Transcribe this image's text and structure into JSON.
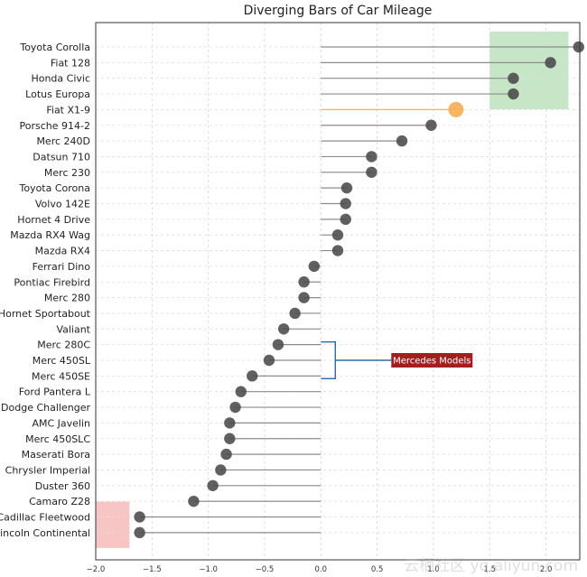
{
  "watermark": "云栖社区 yq.aliyun.com",
  "chart_data": {
    "type": "lollipop",
    "title": "Diverging Bars of Car Mileage",
    "xlim": [
      -2.0,
      2.3
    ],
    "xticks": [
      -2.0,
      -1.5,
      -1.0,
      -0.5,
      0.0,
      0.5,
      1.0,
      1.5,
      2.0
    ],
    "xtick_labels": [
      "−2.0",
      "−1.5",
      "−1.0",
      "−0.5",
      "0.0",
      "0.5",
      "1.0",
      "1.5",
      "2.0"
    ],
    "grid": true,
    "categories": [
      "Toyota Corolla",
      "Fiat 128",
      "Honda Civic",
      "Lotus Europa",
      "Fiat X1-9",
      "Porsche 914-2",
      "Merc 240D",
      "Datsun 710",
      "Merc 230",
      "Toyota Corona",
      "Volvo 142E",
      "Hornet 4 Drive",
      "Mazda RX4 Wag",
      "Mazda RX4",
      "Ferrari Dino",
      "Pontiac Firebird",
      "Merc 280",
      "Hornet Sportabout",
      "Valiant",
      "Merc 280C",
      "Merc 450SL",
      "Merc 450SE",
      "Ford Pantera L",
      "Dodge Challenger",
      "AMC Javelin",
      "Merc 450SLC",
      "Maserati Bora",
      "Chrysler Imperial",
      "Duster 360",
      "Camaro Z28",
      "Cadillac Fleetwood",
      "Lincoln Continental"
    ],
    "values": [
      2.29,
      2.04,
      1.71,
      1.71,
      1.2,
      0.98,
      0.72,
      0.45,
      0.45,
      0.23,
      0.22,
      0.22,
      0.15,
      0.15,
      -0.06,
      -0.15,
      -0.15,
      -0.23,
      -0.33,
      -0.38,
      -0.46,
      -0.61,
      -0.71,
      -0.76,
      -0.81,
      -0.81,
      -0.84,
      -0.89,
      -0.96,
      -1.13,
      -1.61,
      -1.61
    ],
    "highlight": {
      "category": "Fiat X1-9",
      "color": "#f7b05b"
    },
    "point_color": "#4a4a4a",
    "stem_color": "#8c8c8c",
    "regions": [
      {
        "x": [
          1.5,
          2.2
        ],
        "from": "Toyota Corolla",
        "to": "Lotus Europa",
        "color": "#a9d8a9"
      },
      {
        "x": [
          -2.0,
          -1.7
        ],
        "from": "Cadillac Fleetwood",
        "to": "Lincoln Continental",
        "color": "#f5a6a6"
      }
    ],
    "annotation": {
      "text": "Mercedes Models",
      "bracket_from": "Merc 280C",
      "bracket_to": "Merc 450SE",
      "bracket_color": "#2f6aa6",
      "box_color": "#a1201f"
    }
  }
}
